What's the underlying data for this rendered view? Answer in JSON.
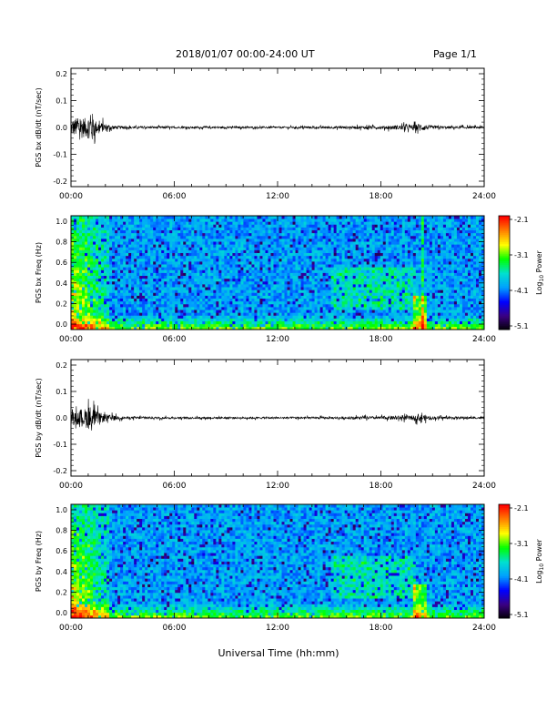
{
  "header": {
    "date_range": "2018/01/07  00:00-24:00 UT",
    "page": "Page 1/1"
  },
  "footer": {
    "xlabel": "Universal Time (hh:mm)"
  },
  "colorbar": {
    "tick_labels": [
      "-2.1",
      "-3.1",
      "-4.1",
      "-5.1"
    ],
    "label_text": "Power",
    "label_prefix": "Log",
    "label_subscript": "10",
    "colors": [
      "#000000",
      "#3b0082",
      "#0000ff",
      "#00a0ff",
      "#00e0d0",
      "#00ff00",
      "#ffff00",
      "#ff8000",
      "#ff0000"
    ]
  },
  "chart_data": [
    {
      "type": "line",
      "ylabel": "PGS bx dB/dt (nT/sec)",
      "ylim": [
        -0.2,
        0.2
      ],
      "y_ticks": [
        "0.2",
        "0.1",
        "0.0",
        "-0.1",
        "-0.2"
      ],
      "x_ticks": [
        "00:00",
        "06:00",
        "12:00",
        "18:00",
        "24:00"
      ],
      "x_range_hours": [
        0,
        24
      ],
      "series": [
        {
          "x": [
            0,
            0.3,
            0.6,
            0.8,
            1.0,
            1.2,
            1.4,
            1.6,
            2.0,
            2.5,
            3,
            6,
            9,
            12,
            15,
            18,
            20,
            20.2,
            21,
            22,
            23,
            24
          ],
          "amplitude": [
            0.04,
            0.05,
            0.06,
            0.05,
            0.06,
            0.09,
            0.04,
            0.03,
            0.02,
            0.01,
            0.006,
            0.005,
            0.005,
            0.005,
            0.006,
            0.008,
            0.015,
            0.022,
            0.008,
            0.007,
            0.006,
            0.005
          ]
        }
      ],
      "color": "#000000"
    },
    {
      "type": "heatmap",
      "ylabel": "PGS bx Freq (Hz)",
      "ylim": [
        0.0,
        1.0
      ],
      "y_ticks": [
        "1.0",
        "0.8",
        "0.6",
        "0.4",
        "0.2",
        "0.0"
      ],
      "x_ticks": [
        "00:00",
        "06:00",
        "12:00",
        "18:00",
        "24:00"
      ],
      "x_range_hours": [
        0,
        24
      ],
      "colorbar_range": [
        -5.1,
        -2.1
      ]
    },
    {
      "type": "line",
      "ylabel": "PGS by dB/dt (nT/sec)",
      "ylim": [
        -0.2,
        0.2
      ],
      "y_ticks": [
        "0.2",
        "0.1",
        "0.0",
        "-0.1",
        "-0.2"
      ],
      "x_ticks": [
        "00:00",
        "06:00",
        "12:00",
        "18:00",
        "24:00"
      ],
      "x_range_hours": [
        0,
        24
      ],
      "series": [
        {
          "x": [
            0,
            0.3,
            0.6,
            0.8,
            1.0,
            1.2,
            1.4,
            1.6,
            2.0,
            2.5,
            3,
            6,
            9,
            12,
            15,
            18,
            20,
            20.2,
            21,
            22,
            23,
            24
          ],
          "amplitude": [
            0.02,
            0.03,
            0.05,
            0.05,
            0.06,
            0.07,
            0.04,
            0.03,
            0.02,
            0.012,
            0.007,
            0.005,
            0.005,
            0.005,
            0.006,
            0.008,
            0.013,
            0.02,
            0.008,
            0.007,
            0.006,
            0.005
          ]
        }
      ],
      "color": "#000000"
    },
    {
      "type": "heatmap",
      "ylabel": "PGS by Freq (Hz)",
      "ylim": [
        0.0,
        1.0
      ],
      "y_ticks": [
        "1.0",
        "0.8",
        "0.6",
        "0.4",
        "0.2",
        "0.0"
      ],
      "x_ticks": [
        "00:00",
        "06:00",
        "12:00",
        "18:00",
        "24:00"
      ],
      "x_range_hours": [
        0,
        24
      ],
      "colorbar_range": [
        -5.1,
        -2.1
      ]
    }
  ]
}
